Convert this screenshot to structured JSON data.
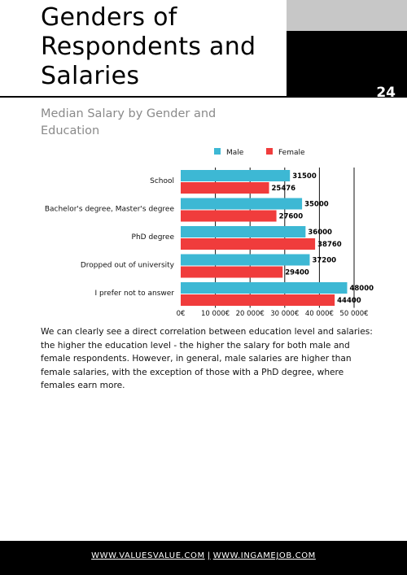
{
  "page": {
    "title": "Genders of Respondents and Salaries",
    "page_number": "24"
  },
  "chart_data": {
    "type": "bar",
    "orientation": "horizontal",
    "title": "Median Salary by Gender and Education",
    "categories": [
      "School",
      "Bachelor's degree, Master's degree",
      "PhD degree",
      "Dropped out of university",
      "I prefer not to answer"
    ],
    "series": [
      {
        "name": "Male",
        "values": [
          31500,
          35000,
          36000,
          37200,
          48000
        ],
        "color": "#3db8d4"
      },
      {
        "name": "Female",
        "values": [
          25476,
          27600,
          38760,
          29400,
          44400
        ],
        "color": "#f03c3c"
      }
    ],
    "value_labels": {
      "Male": [
        "31500",
        "35000",
        "36000",
        "37200",
        "48000"
      ],
      "Female": [
        "25476",
        "27600",
        "38760",
        "29400",
        "44400"
      ]
    },
    "x_ticks": [
      0,
      10000,
      20000,
      30000,
      40000,
      50000
    ],
    "x_tick_labels": [
      "0€",
      "10 000€",
      "20 000€",
      "30 000€",
      "40 000€",
      "50 000€"
    ],
    "xlim": [
      0,
      50000
    ],
    "legend_position": "top-center",
    "grid": "vertical"
  },
  "description": "We can clearly see a direct correlation between education level and salaries: the higher the education level - the higher the salary for both male and female respondents. However, in general, male salaries are higher than female salaries, with the exception of those with a PhD degree, where females earn more.",
  "footer": {
    "link1": "WWW.VALUESVALUE.COM",
    "separator": "|",
    "link2": "WWW.INGAMEJOB.COM"
  }
}
